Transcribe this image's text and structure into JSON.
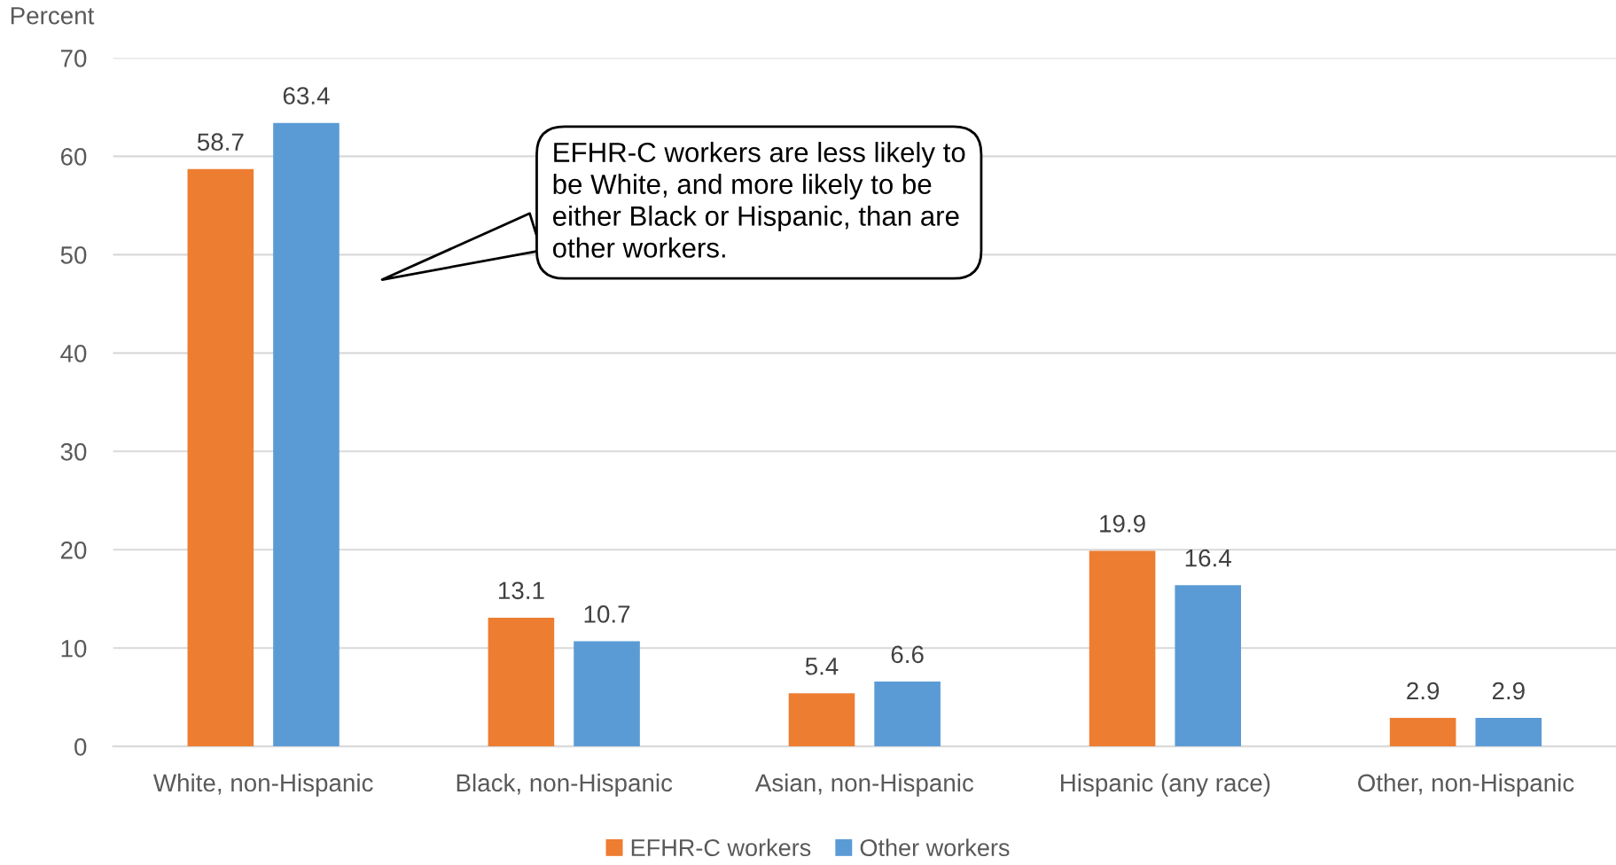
{
  "chart_data": {
    "type": "bar",
    "ylabel": "Percent",
    "categories": [
      "White, non-Hispanic",
      "Black, non-Hispanic",
      "Asian, non-Hispanic",
      "Hispanic (any race)",
      "Other, non-Hispanic"
    ],
    "series": [
      {
        "name": "EFHR-C workers",
        "color": "#ed7d31",
        "values": [
          58.7,
          13.1,
          5.4,
          19.9,
          2.9
        ]
      },
      {
        "name": "Other workers",
        "color": "#5b9bd5",
        "values": [
          63.4,
          10.7,
          6.6,
          16.4,
          2.9
        ]
      }
    ],
    "ylim": [
      0,
      70
    ],
    "yticks": [
      0,
      10,
      20,
      30,
      40,
      50,
      60,
      70
    ],
    "grid": "y",
    "legend": "bottom",
    "data_labels": true,
    "annotations": [
      "EFHR-C workers are less likely to be White, and more likely to be either Black or Hispanic, than are other workers."
    ]
  }
}
